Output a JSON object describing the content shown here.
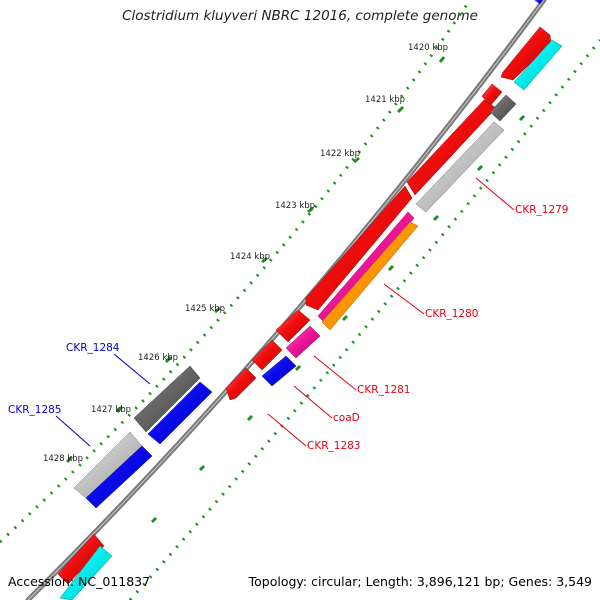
{
  "header": {
    "title": "Clostridium kluyveri NBRC 12016, complete genome"
  },
  "footer": {
    "accession": "Accession: NC_011837",
    "summary": "Topology: circular; Length: 3,896,121 bp; Genes: 3,549"
  },
  "ruler": {
    "ticks": [
      "1420 kbp",
      "1421 kbp",
      "1422 kbp",
      "1423 kbp",
      "1424 kbp",
      "1425 kbp",
      "1426 kbp",
      "1427 kbp",
      "1428 kbp"
    ]
  },
  "gene_labels": [
    {
      "id": "CKR_1279",
      "text": "CKR_1279",
      "color": "#e8000e"
    },
    {
      "id": "CKR_1280",
      "text": "CKR_1280",
      "color": "#e8000e"
    },
    {
      "id": "CKR_1281",
      "text": "CKR_1281",
      "color": "#e8000e"
    },
    {
      "id": "coaD",
      "text": "coaD",
      "color": "#e8000e"
    },
    {
      "id": "CKR_1283",
      "text": "CKR_1283",
      "color": "#e8000e"
    },
    {
      "id": "CKR_1284",
      "text": "CKR_1284",
      "color": "#0000cc"
    },
    {
      "id": "CKR_1285",
      "text": "CKR_1285",
      "color": "#0000cc"
    }
  ],
  "colors": {
    "backbone": "#7a7a7a",
    "tick_dot": "#1f8f1f",
    "cds_red": "#f20d0d",
    "cds_blue": "#0a0af0",
    "cds_cyan": "#00f0f0",
    "cds_gray_dark": "#666666",
    "cds_gray_light": "#c4c4c4",
    "cds_pink": "#f0169a",
    "cds_orange": "#ff9900"
  }
}
